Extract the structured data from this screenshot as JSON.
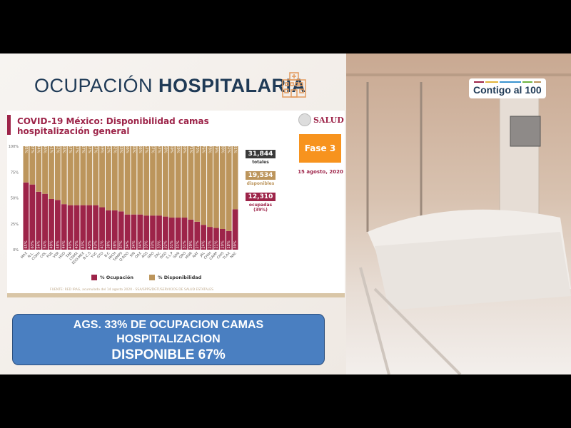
{
  "header": {
    "title_light": "OCUPACIÓN",
    "title_bold": "HOSPITALARIA"
  },
  "panel": {
    "salud_logo": "SALUD",
    "phase": "Fase 3",
    "date": "15 agosto, 2020",
    "stats": [
      {
        "value": "31,844",
        "label": "totales",
        "color": "#3a3a3a",
        "label_color": "#333"
      },
      {
        "value": "19,534",
        "label": "disponibles",
        "color": "#bc955c",
        "label_color": "#bc955c"
      },
      {
        "value": "12,310",
        "label": "ocupadas (39%)",
        "color": "#9d2449",
        "label_color": "#9d2449"
      }
    ],
    "source": "FUENTE: RED IRAG, acumulado del 14 agosto 2020 - SSA/SPPS/DGTI/SERVICIOS DE SALUD ESTATALES"
  },
  "chart_data": {
    "type": "bar",
    "stacked": true,
    "orientation": "vertical",
    "title": "COVID-19 México: Disponibilidad camas hospitalización general",
    "categories": [
      "MAX",
      "N.L.",
      "COAH",
      "COL",
      "PUE",
      "VER",
      "HGO",
      "TAB",
      "CDMX",
      "EDO.MEX",
      "B.C.S",
      "YUC",
      "GTO",
      "B.C",
      "MICH",
      "TAMPS",
      "Q.ROO",
      "SIN",
      "OAX",
      "AGS",
      "GRO",
      "ZAC",
      "DGO",
      "S.L.P",
      "SON",
      "QRO",
      "MOR",
      "NAY",
      "JAL",
      "CHIH",
      "CAMP",
      "CHIS",
      "TLAX",
      "NAC"
    ],
    "series": [
      {
        "name": "% Ocupación",
        "color": "#9d2449",
        "values": [
          65,
          63,
          56,
          54,
          49,
          48,
          44,
          43,
          43,
          43,
          43,
          43,
          41,
          38,
          38,
          37,
          34,
          34,
          34,
          33,
          33,
          33,
          32,
          31,
          31,
          31,
          29,
          27,
          24,
          22,
          21,
          20,
          18,
          39
        ]
      },
      {
        "name": "% Disponibilidad",
        "color": "#bc955c",
        "values": [
          35,
          37,
          44,
          46,
          51,
          52,
          56,
          57,
          57,
          57,
          57,
          57,
          59,
          62,
          62,
          63,
          66,
          66,
          66,
          67,
          67,
          67,
          68,
          69,
          69,
          69,
          71,
          73,
          76,
          78,
          79,
          80,
          82,
          61
        ]
      }
    ],
    "yticks": [
      "0%",
      "25%",
      "50%",
      "75%",
      "100%"
    ],
    "ylim": [
      0,
      100
    ],
    "legend": "bottom",
    "grid": false
  },
  "logo": {
    "text": "Contigo al 100"
  },
  "banner": {
    "line1": "AGS. 33% DE OCUPACION CAMAS",
    "line2": "HOSPITALIZACION",
    "line3": "DISPONIBLE 67%"
  }
}
